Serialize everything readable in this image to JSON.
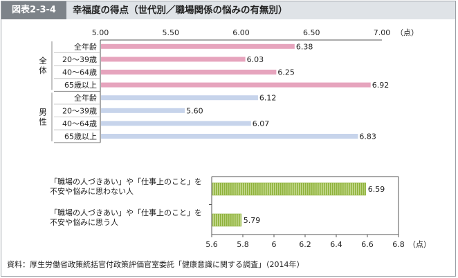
{
  "header": {
    "figure_number": "図表2-3-4",
    "title": "幸福度の得点（世代別／職場関係の悩みの有無別）"
  },
  "source": "資料：厚生労働省政策統括官付政策評価官室委託「健康意識に関する調査」（2014年）",
  "colors": {
    "total": "#e6a4bd",
    "male": "#c7d4eb",
    "green": "#8fb23c",
    "axis": "#555555"
  },
  "chart_data": [
    {
      "type": "bar",
      "orientation": "horizontal",
      "xlim": [
        5.0,
        7.0
      ],
      "ticks": [
        "5.00",
        "5.50",
        "6.00",
        "6.50",
        "7.00"
      ],
      "unit": "（点）",
      "groups": [
        {
          "name": "全体",
          "categories": [
            "全年齢",
            "20～39歳",
            "40～64歳",
            "65歳以上"
          ],
          "values": [
            6.38,
            6.03,
            6.25,
            6.92
          ],
          "labels": [
            "6.38",
            "6.03",
            "6.25",
            "6.92"
          ]
        },
        {
          "name": "男性",
          "categories": [
            "全年齢",
            "20～39歳",
            "40～64歳",
            "65歳以上"
          ],
          "values": [
            6.12,
            5.6,
            6.07,
            6.83
          ],
          "labels": [
            "6.12",
            "5.60",
            "6.07",
            "6.83"
          ]
        }
      ]
    },
    {
      "type": "bar",
      "orientation": "horizontal",
      "xlim": [
        5.6,
        6.8
      ],
      "ticks": [
        "5.6",
        "5.8",
        "6",
        "6.2",
        "6.4",
        "6.6",
        "6.8"
      ],
      "unit": "（点）",
      "categories": [
        [
          "「職場の人づきあい」や「仕事上のこと」を",
          "不安や悩みに思わない人"
        ],
        [
          "「職場の人づきあい」や「仕事上のこと」を",
          "不安や悩みに思う人"
        ]
      ],
      "values": [
        6.59,
        5.79
      ],
      "labels": [
        "6.59",
        "5.79"
      ]
    }
  ]
}
